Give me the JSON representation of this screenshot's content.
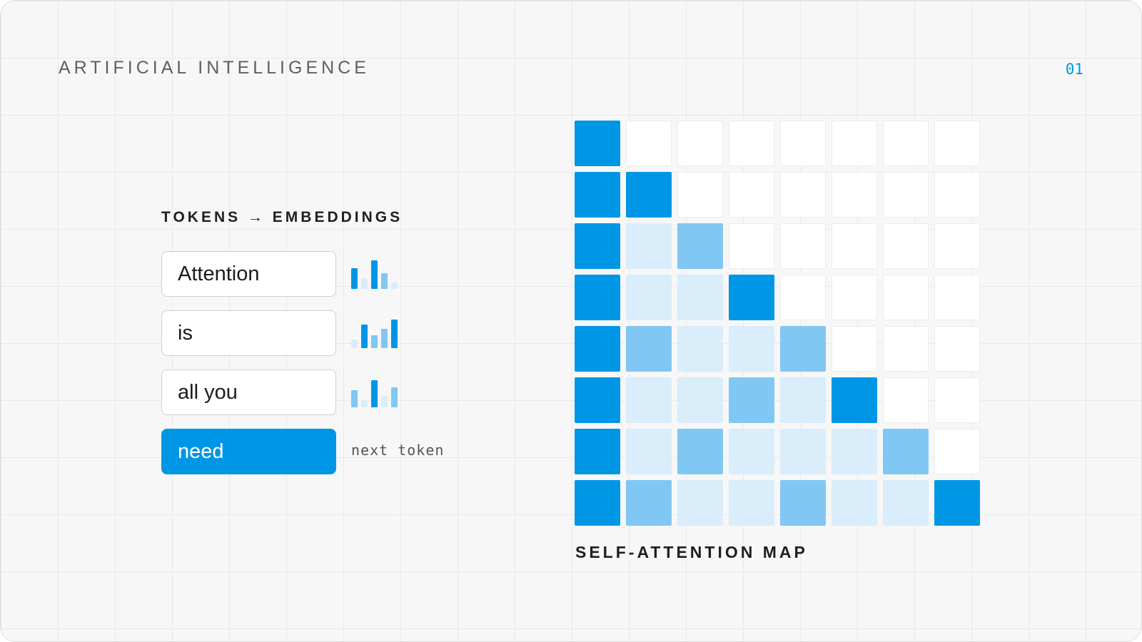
{
  "header": {
    "title": "ARTIFICIAL INTELLIGENCE",
    "page_number": "01"
  },
  "embeddings": {
    "title": "TOKENS → EMBEDDINGS",
    "tokens": [
      {
        "text": "Attention",
        "active": false,
        "bars": [
          0.72,
          0.38,
          1.0,
          0.55,
          0.22
        ],
        "bar_strength": [
          "strong",
          "light",
          "strong",
          "mid",
          "light"
        ]
      },
      {
        "text": "is",
        "active": false,
        "bars": [
          0.3,
          0.82,
          0.45,
          0.68,
          1.0
        ],
        "bar_strength": [
          "light",
          "strong",
          "mid",
          "mid",
          "strong"
        ]
      },
      {
        "text": "all you",
        "active": false,
        "bars": [
          0.6,
          0.25,
          0.95,
          0.4,
          0.7
        ],
        "bar_strength": [
          "mid",
          "light",
          "strong",
          "light",
          "mid"
        ]
      },
      {
        "text": "need",
        "active": true
      }
    ],
    "next_token_label": "next token"
  },
  "colors": {
    "strong": "#0096e6",
    "mid": "#80c7f3",
    "light": "#d9edfb",
    "empty": "#ffffff",
    "accent": "#0096e6"
  },
  "attention_map": {
    "title": "SELF-ATTENTION MAP",
    "size": 8,
    "levels": [
      [
        3,
        0,
        0,
        0,
        0,
        0,
        0,
        0
      ],
      [
        3,
        3,
        0,
        0,
        0,
        0,
        0,
        0
      ],
      [
        3,
        1,
        2,
        0,
        0,
        0,
        0,
        0
      ],
      [
        3,
        1,
        1,
        3,
        0,
        0,
        0,
        0
      ],
      [
        3,
        2,
        1,
        1,
        2,
        0,
        0,
        0
      ],
      [
        3,
        1,
        1,
        2,
        1,
        3,
        0,
        0
      ],
      [
        3,
        1,
        2,
        1,
        1,
        1,
        2,
        0
      ],
      [
        3,
        2,
        1,
        1,
        2,
        1,
        1,
        3
      ]
    ]
  }
}
